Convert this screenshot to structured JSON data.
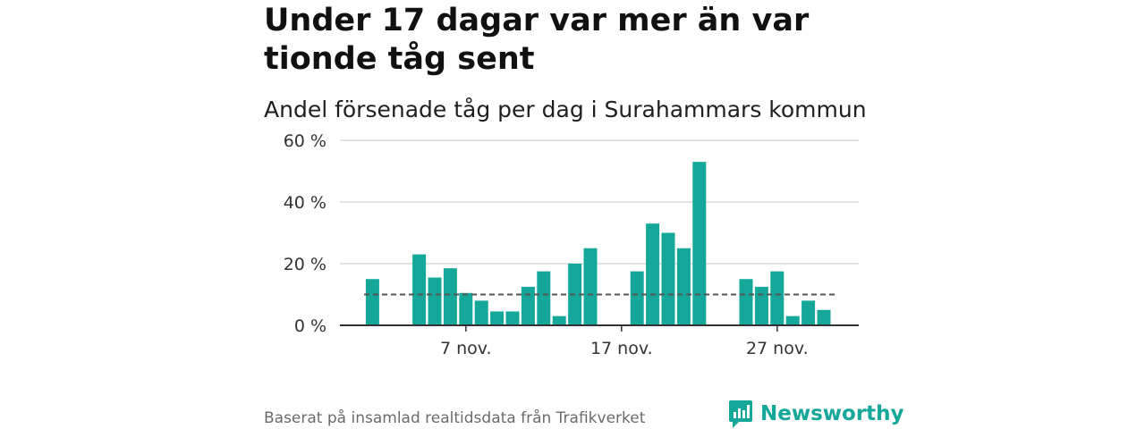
{
  "title": "Under 17 dagar var mer än var tionde tåg sent",
  "subtitle": "Andel försenade tåg per dag i Surahammars kommun",
  "footer": "Baserat på insamlad realtidsdata från Trafikverket",
  "brand": "Newsworthy",
  "colors": {
    "bar": "#14a79a",
    "brand": "#14a79a",
    "grid": "#d9d9d9",
    "axis": "#333333",
    "reference": "#555555"
  },
  "chart_data": {
    "type": "bar",
    "title": "Andel försenade tåg per dag i Surahammars kommun",
    "x": [
      1,
      2,
      3,
      4,
      5,
      6,
      7,
      8,
      9,
      10,
      11,
      12,
      13,
      14,
      15,
      16,
      17,
      18,
      19,
      20,
      21,
      22,
      23,
      24,
      25,
      26,
      27,
      28,
      29,
      30
    ],
    "xlabel": "",
    "xticks": [
      {
        "x": 7,
        "label": "7 nov."
      },
      {
        "x": 17,
        "label": "17 nov."
      },
      {
        "x": 27,
        "label": "27 nov."
      }
    ],
    "values": [
      15,
      null,
      null,
      23,
      15.5,
      18.5,
      10.5,
      8,
      4.5,
      4.5,
      12.5,
      17.5,
      3,
      20,
      25,
      null,
      null,
      17.5,
      33,
      30,
      25,
      53,
      null,
      null,
      15,
      12.5,
      17.5,
      3,
      8,
      5
    ],
    "ylabel": "",
    "ylim": [
      0,
      60
    ],
    "yticks": [
      0,
      20,
      40,
      60
    ],
    "ytick_labels": [
      "0 %",
      "20 %",
      "40 %",
      "60 %"
    ],
    "reference_line": {
      "value": 10,
      "style": "dashed"
    },
    "grid": true
  }
}
